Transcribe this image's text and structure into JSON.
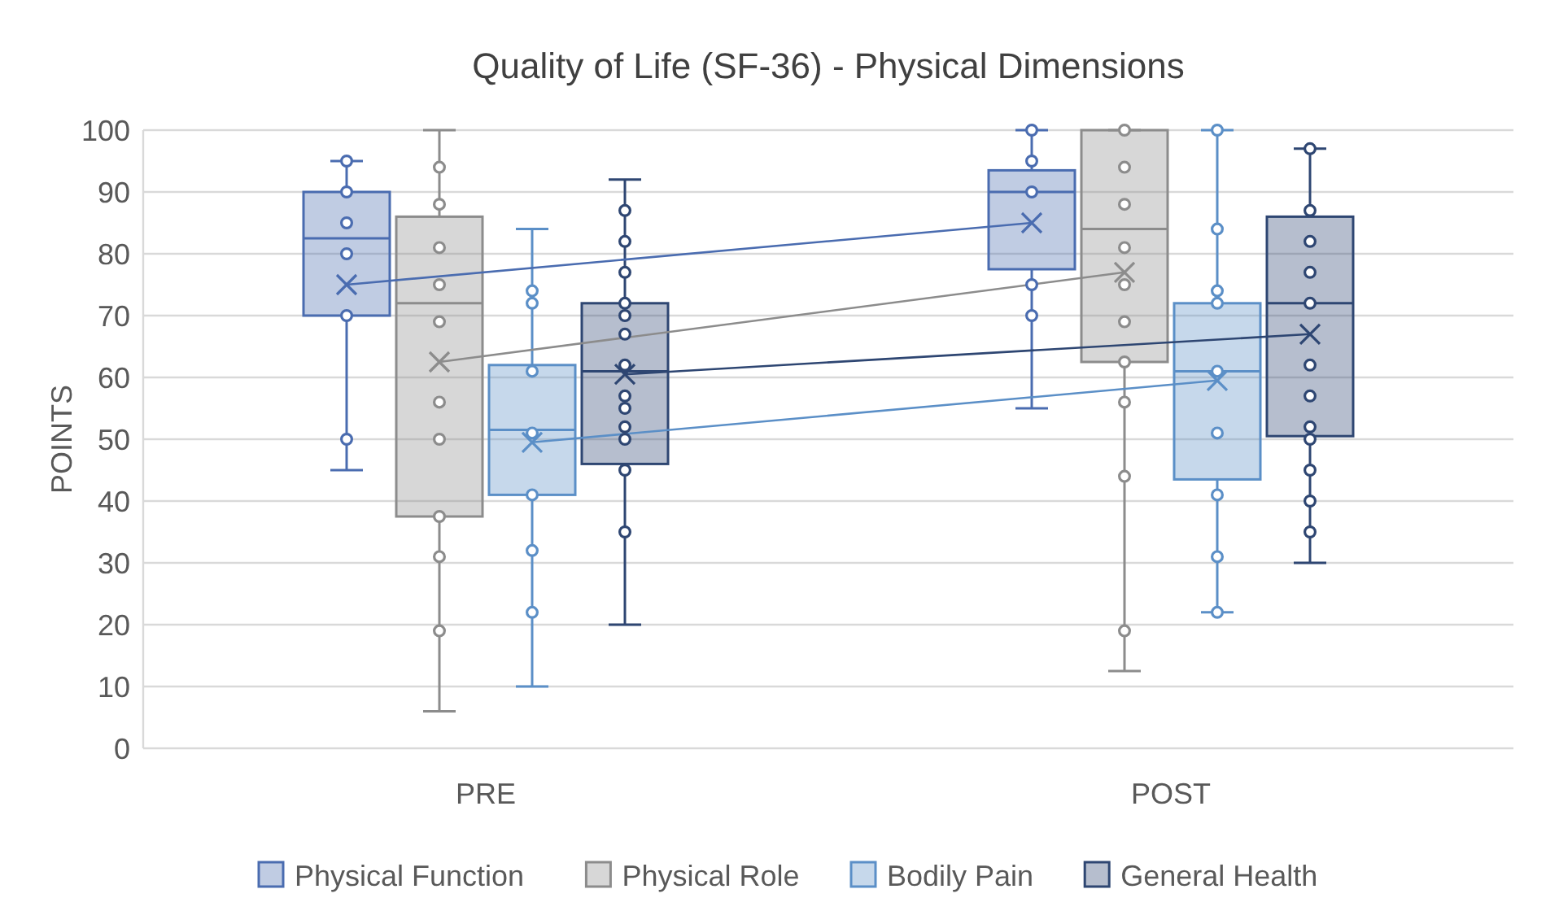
{
  "chart_data": {
    "type": "box",
    "title": "Quality of Life (SF-36) - Physical Dimensions",
    "ylabel": "POINTS",
    "categories": [
      "PRE",
      "POST"
    ],
    "ylim": [
      0,
      100
    ],
    "yticks": [
      0,
      10,
      20,
      30,
      40,
      50,
      60,
      70,
      80,
      90,
      100
    ],
    "grid": "y",
    "legend": "bottom",
    "marker": "circle",
    "series": [
      {
        "name": "Physical Function",
        "color": "#4a6cb0",
        "boxes": [
          {
            "low": 45,
            "q1": 70,
            "median": 82.5,
            "q3": 90,
            "high": 95,
            "mean": 75,
            "outliers": [
              95,
              90,
              85,
              80,
              70,
              50
            ]
          },
          {
            "low": 55,
            "q1": 77.5,
            "median": 90,
            "q3": 93.5,
            "high": 100,
            "mean": 85,
            "outliers": [
              100,
              95,
              90,
              75,
              70
            ]
          }
        ]
      },
      {
        "name": "Physical Role",
        "color": "#8c8c8c",
        "boxes": [
          {
            "low": 6,
            "q1": 37.5,
            "median": 72,
            "q3": 86,
            "high": 100,
            "mean": 62.5,
            "outliers": [
              94,
              88,
              81,
              75,
              69,
              56,
              50,
              37.5,
              31,
              19
            ]
          },
          {
            "low": 12.5,
            "q1": 62.5,
            "median": 84,
            "q3": 100,
            "high": 100,
            "mean": 77,
            "outliers": [
              100,
              94,
              88,
              81,
              75,
              69,
              62.5,
              56,
              44,
              19
            ]
          }
        ]
      },
      {
        "name": "Bodily Pain",
        "color": "#5b8fc7",
        "boxes": [
          {
            "low": 10,
            "q1": 41,
            "median": 51.5,
            "q3": 62,
            "high": 84,
            "mean": 49.5,
            "outliers": [
              74,
              72,
              61,
              51,
              41,
              32,
              22
            ]
          },
          {
            "low": 22,
            "q1": 43.5,
            "median": 61,
            "q3": 72,
            "high": 100,
            "mean": 59.5,
            "outliers": [
              100,
              84,
              74,
              72,
              61,
              51,
              41,
              31,
              22
            ]
          }
        ]
      },
      {
        "name": "General Health",
        "color": "#2e4672",
        "boxes": [
          {
            "low": 20,
            "q1": 46,
            "median": 61,
            "q3": 72,
            "high": 92,
            "mean": 60.5,
            "outliers": [
              87,
              82,
              77,
              72,
              70,
              67,
              62,
              57,
              55,
              52,
              50,
              45,
              35
            ]
          },
          {
            "low": 30,
            "q1": 50.5,
            "median": 72,
            "q3": 86,
            "high": 97,
            "mean": 67,
            "outliers": [
              97,
              87,
              82,
              77,
              72,
              62,
              57,
              52,
              50,
              45,
              40,
              35
            ]
          }
        ]
      },
      {
        "type": "line",
        "marker": "none",
        "color": "#4a6cb0",
        "values": [
          75,
          85
        ]
      },
      {
        "type": "line",
        "marker": "none",
        "color": "#8c8c8c",
        "values": [
          62.5,
          77
        ]
      },
      {
        "type": "line",
        "marker": "none",
        "color": "#5b8fc7",
        "values": [
          49.5,
          59.5
        ]
      },
      {
        "type": "line",
        "marker": "none",
        "color": "#2e4672",
        "values": [
          60.5,
          67
        ]
      }
    ]
  }
}
